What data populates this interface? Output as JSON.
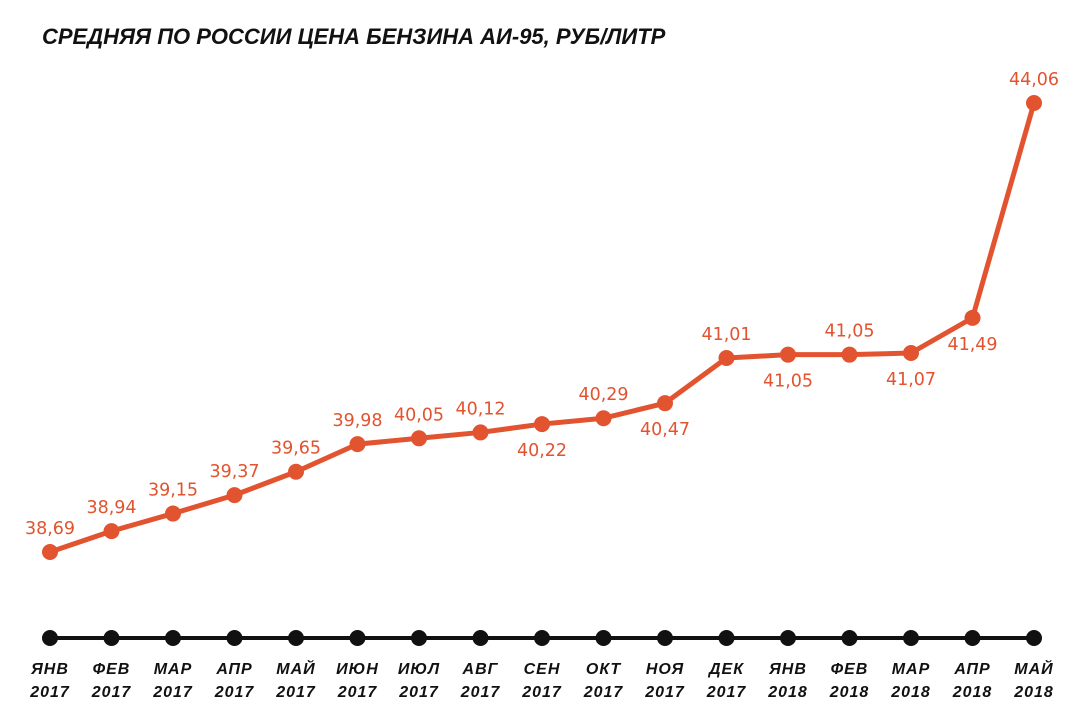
{
  "chart_data": {
    "type": "line",
    "title": "СРЕДНЯЯ ПО РОССИИ ЦЕНА БЕНЗИНА АИ-95, РУБ/ЛИТР",
    "xlabel": "",
    "ylabel": "",
    "grid": false,
    "categories": [
      {
        "month": "ЯНВ",
        "year": "2017"
      },
      {
        "month": "ФЕВ",
        "year": "2017"
      },
      {
        "month": "МАР",
        "year": "2017"
      },
      {
        "month": "АПР",
        "year": "2017"
      },
      {
        "month": "МАЙ",
        "year": "2017"
      },
      {
        "month": "ИЮН",
        "year": "2017"
      },
      {
        "month": "ИЮЛ",
        "year": "2017"
      },
      {
        "month": "АВГ",
        "year": "2017"
      },
      {
        "month": "СЕН",
        "year": "2017"
      },
      {
        "month": "ОКТ",
        "year": "2017"
      },
      {
        "month": "НОЯ",
        "year": "2017"
      },
      {
        "month": "ДЕК",
        "year": "2017"
      },
      {
        "month": "ЯНВ",
        "year": "2018"
      },
      {
        "month": "ФЕВ",
        "year": "2018"
      },
      {
        "month": "МАР",
        "year": "2018"
      },
      {
        "month": "АПР",
        "year": "2018"
      },
      {
        "month": "МАЙ",
        "year": "2018"
      }
    ],
    "values": [
      38.69,
      38.94,
      39.15,
      39.37,
      39.65,
      39.98,
      40.05,
      40.12,
      40.22,
      40.29,
      40.47,
      41.01,
      41.05,
      41.05,
      41.07,
      41.49,
      44.06
    ],
    "value_labels": [
      "38,69",
      "38,94",
      "39,15",
      "39,37",
      "39,65",
      "39,98",
      "40,05",
      "40,12",
      "40,22",
      "40,29",
      "40,47",
      "41,01",
      "41,05",
      "41,05",
      "41,07",
      "41,49",
      "44,06"
    ],
    "label_positions": [
      "above",
      "above",
      "above",
      "above",
      "above",
      "above",
      "above",
      "above",
      "below",
      "above",
      "below",
      "above",
      "below",
      "above",
      "below",
      "below",
      "above"
    ],
    "colors": {
      "line": "#e2532f",
      "axis": "#111111",
      "labels": "#e2532f"
    }
  }
}
